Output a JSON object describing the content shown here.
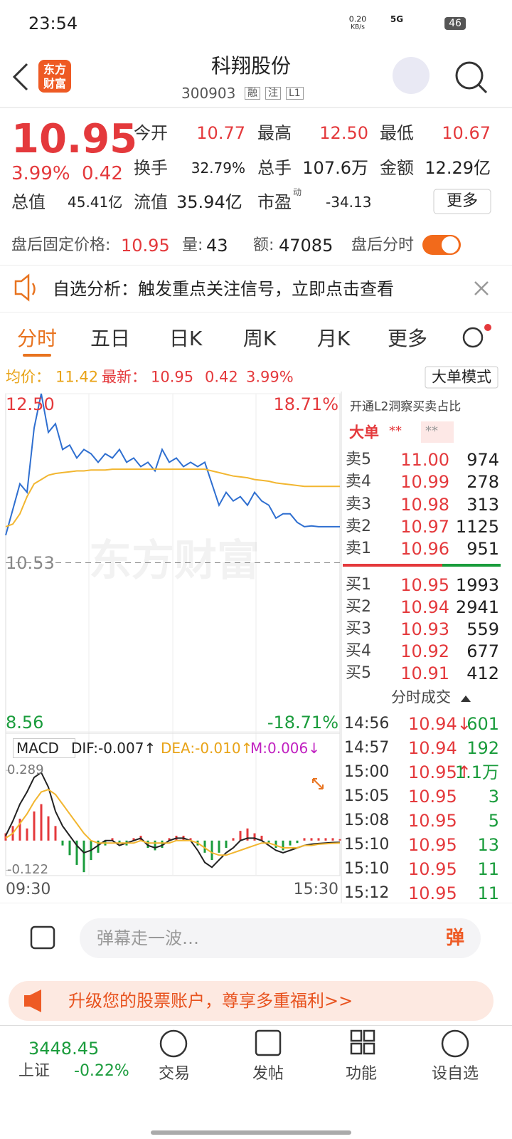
{
  "status_bar": {
    "time": "23:54",
    "net_speed": "0.20",
    "net_unit": "KB/s",
    "network": "5G",
    "battery": "46"
  },
  "header": {
    "logo": [
      "东方",
      "财富"
    ],
    "title": "科翔股份",
    "code": "300903",
    "badges": [
      "融",
      "注",
      "L1"
    ]
  },
  "quote": {
    "price": "10.95",
    "change_pct": "3.99%",
    "change": "0.42",
    "fields": [
      {
        "label": "今开",
        "value": "10.77"
      },
      {
        "label": "最高",
        "value": "12.50"
      },
      {
        "label": "最低",
        "value": "10.67"
      },
      {
        "label": "换手",
        "value": "32.79%"
      },
      {
        "label": "总手",
        "value": "107.6万"
      },
      {
        "label": "金额",
        "value": "12.29亿"
      },
      {
        "label": "总值",
        "value": "45.41亿"
      },
      {
        "label": "流值",
        "value": "35.94亿"
      },
      {
        "label": "市盈",
        "value": "-34.13"
      }
    ],
    "pe_superscript": "动",
    "more_button": "更多"
  },
  "after_hours": {
    "price_label": "盘后固定价格:",
    "price": "10.95",
    "volume_label": "量:",
    "volume": "43",
    "amount_label": "额:",
    "amount": "47085",
    "chart_toggle": "盘后分时"
  },
  "notice": "自选分析：触发重点关注信号，立即点击查看",
  "tabs": [
    "分时",
    "五日",
    "日K",
    "周K",
    "月K",
    "更多"
  ],
  "info_bar": {
    "avg_label": "均价：",
    "avg": "11.42",
    "last_label": "最新：",
    "last": "10.95",
    "change": "0.42",
    "change_pct": "3.99%",
    "mode_button": "大单模式"
  },
  "chart_data": [
    {
      "type": "line",
      "watermark": "东方财富",
      "ylim": [
        8.56,
        12.5
      ],
      "yticks": [
        {
          "value": 12.5,
          "label": "12.50"
        },
        {
          "value": 10.53,
          "label": "10.53"
        },
        {
          "value": 8.56,
          "label": "8.56"
        }
      ],
      "pct_labels": [
        "18.71%",
        "-18.71%"
      ],
      "x_labels": [
        "09:30",
        "15:30"
      ],
      "series": [
        {
          "color": "#2f6fd0",
          "values": [
            10.85,
            11.15,
            11.45,
            11.35,
            12.1,
            12.5,
            12.05,
            12.15,
            11.85,
            11.9,
            11.75,
            11.85,
            11.8,
            11.7,
            11.8,
            11.75,
            11.85,
            11.7,
            11.75,
            11.65,
            11.7,
            11.6,
            11.85,
            11.7,
            11.75,
            11.65,
            11.7,
            11.65,
            11.7,
            11.45,
            11.2,
            11.35,
            11.25,
            11.3,
            11.2,
            11.35,
            11.25,
            11.2,
            11.05,
            11.1,
            11.1,
            11.0,
            10.95,
            10.96,
            10.95,
            10.95,
            10.95,
            10.95
          ]
        },
        {
          "color": "#f2b630",
          "values": [
            10.95,
            10.98,
            11.1,
            11.3,
            11.45,
            11.5,
            11.55,
            11.57,
            11.58,
            11.59,
            11.6,
            11.6,
            11.61,
            11.61,
            11.61,
            11.62,
            11.62,
            11.62,
            11.62,
            11.62,
            11.62,
            11.62,
            11.62,
            11.62,
            11.62,
            11.62,
            11.62,
            11.62,
            11.62,
            11.6,
            11.58,
            11.56,
            11.54,
            11.53,
            11.52,
            11.5,
            11.49,
            11.48,
            11.46,
            11.45,
            11.44,
            11.43,
            11.42,
            11.42,
            11.42,
            11.42,
            11.42,
            11.42
          ]
        }
      ]
    },
    {
      "type": "macd",
      "title": "MACD",
      "indicators": [
        "DIF:-0.007↑",
        "DEA:-0.010↑",
        "M:0.006↓"
      ],
      "ylim": [
        -0.15,
        0.31
      ],
      "yticks": [
        0.289,
        -0.122
      ],
      "bars": {
        "up_color": "#e4393c",
        "down_color": "#1a9c3c",
        "values": [
          0.03,
          0.06,
          0.09,
          0.05,
          0.12,
          0.15,
          0.1,
          0.06,
          -0.02,
          -0.06,
          -0.1,
          -0.13,
          -0.08,
          -0.05,
          -0.02,
          0.01,
          -0.01,
          -0.02,
          0.01,
          0.02,
          -0.03,
          -0.04,
          -0.03,
          0.01,
          0.02,
          0.02,
          0.01,
          -0.02,
          -0.05,
          -0.08,
          -0.05,
          -0.03,
          0.01,
          0.04,
          0.05,
          0.03,
          0.02,
          -0.01,
          -0.03,
          -0.04,
          -0.02,
          -0.01,
          0.01,
          0.01,
          0.01,
          0.01,
          0.01,
          0.006
        ]
      },
      "series": [
        {
          "color": "#222222",
          "values": [
            0.02,
            0.08,
            0.15,
            0.2,
            0.26,
            0.28,
            0.22,
            0.12,
            0.06,
            0.02,
            -0.02,
            -0.05,
            -0.04,
            -0.02,
            0,
            0,
            -0.02,
            -0.01,
            0,
            0.01,
            -0.02,
            -0.03,
            -0.02,
            0,
            0.01,
            0.01,
            0,
            -0.04,
            -0.09,
            -0.11,
            -0.08,
            -0.05,
            -0.03,
            0,
            0.01,
            0.01,
            0,
            -0.02,
            -0.04,
            -0.05,
            -0.04,
            -0.03,
            -0.02,
            -0.015,
            -0.012,
            -0.01,
            -0.008,
            -0.007
          ]
        },
        {
          "color": "#f2b630",
          "values": [
            0.01,
            0.03,
            0.07,
            0.11,
            0.16,
            0.2,
            0.21,
            0.19,
            0.15,
            0.11,
            0.07,
            0.03,
            0,
            -0.01,
            -0.01,
            -0.01,
            -0.01,
            -0.01,
            -0.01,
            0,
            -0.01,
            -0.01,
            -0.01,
            -0.01,
            0,
            0,
            0,
            -0.01,
            -0.03,
            -0.05,
            -0.06,
            -0.06,
            -0.05,
            -0.04,
            -0.03,
            -0.02,
            -0.01,
            -0.01,
            -0.02,
            -0.03,
            -0.03,
            -0.03,
            -0.02,
            -0.02,
            -0.015,
            -0.013,
            -0.011,
            -0.01
          ]
        }
      ]
    }
  ],
  "order_book": {
    "promo": "开通L2洞察买卖占比",
    "big_order": "大单",
    "masked": [
      "**",
      "**"
    ],
    "asks": [
      {
        "label": "卖5",
        "price": "11.00",
        "volume": "974"
      },
      {
        "label": "卖4",
        "price": "10.99",
        "volume": "278"
      },
      {
        "label": "卖3",
        "price": "10.98",
        "volume": "313"
      },
      {
        "label": "卖2",
        "price": "10.97",
        "volume": "1125"
      },
      {
        "label": "卖1",
        "price": "10.96",
        "volume": "951"
      }
    ],
    "bids": [
      {
        "label": "买1",
        "price": "10.95",
        "volume": "1993"
      },
      {
        "label": "买2",
        "price": "10.94",
        "volume": "2941"
      },
      {
        "label": "买3",
        "price": "10.93",
        "volume": "559"
      },
      {
        "label": "买4",
        "price": "10.92",
        "volume": "677"
      },
      {
        "label": "买5",
        "price": "10.91",
        "volume": "412"
      }
    ],
    "trades_title": "分时成交",
    "trades": [
      {
        "time": "14:56",
        "price": "10.94↓",
        "volume": "601"
      },
      {
        "time": "14:57",
        "price": "10.94",
        "volume": "192"
      },
      {
        "time": "15:00",
        "price": "10.95↑",
        "volume": "1.1万"
      },
      {
        "time": "15:05",
        "price": "10.95",
        "volume": "3"
      },
      {
        "time": "15:08",
        "price": "10.95",
        "volume": "5"
      },
      {
        "time": "15:10",
        "price": "10.95",
        "volume": "13"
      },
      {
        "time": "15:10",
        "price": "10.95",
        "volume": "11"
      },
      {
        "time": "15:12",
        "price": "10.95",
        "volume": "11"
      }
    ]
  },
  "comment_bar": {
    "placeholder": "弹幕走一波…",
    "button": "弹"
  },
  "promo_banner": "升级您的股票账户，尊享多重福利>>",
  "bottom_nav": {
    "index_value": "3448.45",
    "index_name": "上证",
    "index_change": "-0.22%",
    "items": [
      "交易",
      "发帖",
      "功能",
      "设自选"
    ]
  }
}
